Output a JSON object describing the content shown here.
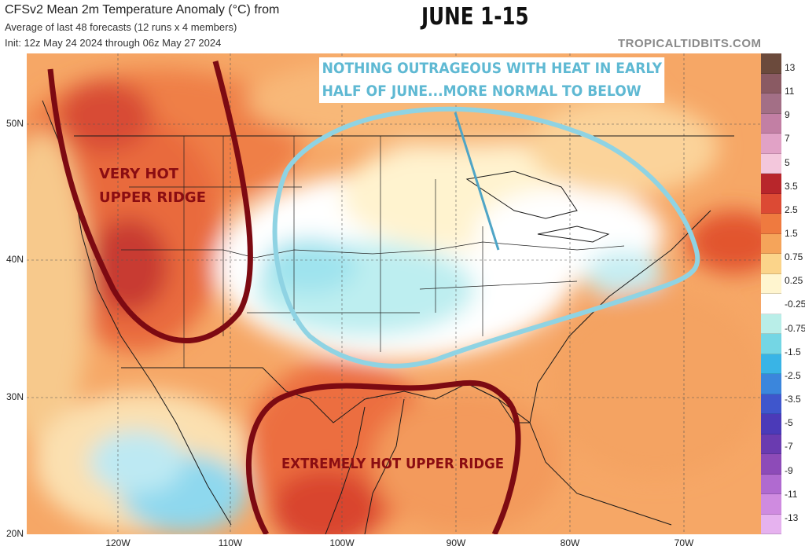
{
  "header": {
    "title": "CFSv2 Mean 2m Temperature Anomaly (°C) from",
    "subtitle1": "Average of last 48 forecasts (12 runs x 4 members)",
    "subtitle2": "Init: 12z May 24 2024 through 06z May 27 2024",
    "banner": "JUNE 1-15",
    "site": "TROPICALTIDBITS.COM"
  },
  "annotations": {
    "note_line1": "NOTHING OUTRAGEOUS WITH HEAT  IN EARLY",
    "note_line2": "HALF OF JUNE...MORE NORMAL TO BELOW",
    "ridge1_line1": "VERY HOT",
    "ridge1_line2": "UPPER RIDGE",
    "ridge2": "EXTREMELY HOT UPPER RIDGE"
  },
  "axes": {
    "lat_labels": [
      "50N",
      "40N",
      "30N",
      "20N"
    ],
    "lon_labels": [
      "120W",
      "110W",
      "100W",
      "90W",
      "80W",
      "70W"
    ]
  },
  "colorbar": {
    "labels": [
      "13",
      "11",
      "9",
      "7",
      "5",
      "3.5",
      "2.5",
      "1.5",
      "0.75",
      "0.25",
      "-0.25",
      "-0.75",
      "-1.5",
      "-2.5",
      "-3.5",
      "-5",
      "-7",
      "-9",
      "-11",
      "-13"
    ],
    "colors": [
      "#6b4a3c",
      "#8a5a63",
      "#a36f86",
      "#c27fa4",
      "#e1a2c6",
      "#f3c7dc",
      "#b8262b",
      "#dc4a34",
      "#ef7a3f",
      "#f5a45a",
      "#fbd48a",
      "#fff5cf",
      "#ffffff",
      "#b9eee8",
      "#74d6e4",
      "#39b4e6",
      "#3b86dc",
      "#3f56cc",
      "#4b3ab8",
      "#6a3bb0",
      "#8d4bb8",
      "#b06ad0",
      "#cf8be0",
      "#e6b2ef"
    ]
  },
  "colors": {
    "ridge_outline": "#7d0a12",
    "trough_outline": "#8fd3e3",
    "note_text": "#5fb9d3"
  }
}
